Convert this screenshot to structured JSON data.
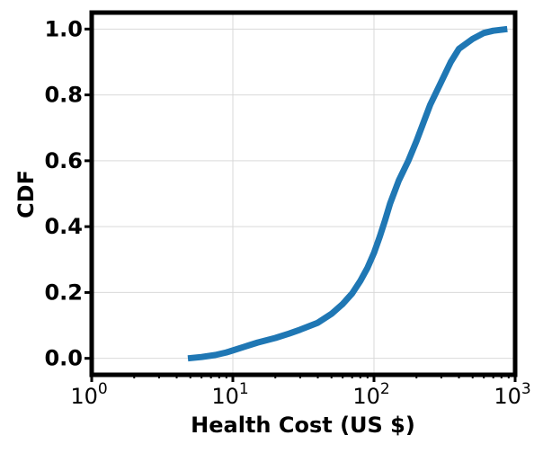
{
  "chart_data": {
    "type": "line",
    "title": "",
    "xlabel": "Health Cost (US $)",
    "ylabel": "CDF",
    "xscale": "log",
    "xlim": [
      1,
      1000
    ],
    "ylim": [
      -0.05,
      1.05
    ],
    "grid": true,
    "legend": "none",
    "x_ticks": [
      {
        "base": "10",
        "exp": "0",
        "value": 1
      },
      {
        "base": "10",
        "exp": "1",
        "value": 10
      },
      {
        "base": "10",
        "exp": "2",
        "value": 100
      },
      {
        "base": "10",
        "exp": "3",
        "value": 1000
      }
    ],
    "y_ticks": [
      {
        "label": "0.0",
        "value": 0.0
      },
      {
        "label": "0.2",
        "value": 0.2
      },
      {
        "label": "0.4",
        "value": 0.4
      },
      {
        "label": "0.6",
        "value": 0.6
      },
      {
        "label": "0.8",
        "value": 0.8
      },
      {
        "label": "1.0",
        "value": 1.0
      }
    ],
    "series": [
      {
        "color": "#1f77b4",
        "points": [
          [
            4.8,
            0.0
          ],
          [
            6,
            0.004
          ],
          [
            7.5,
            0.01
          ],
          [
            9,
            0.018
          ],
          [
            10,
            0.024
          ],
          [
            12,
            0.035
          ],
          [
            15,
            0.048
          ],
          [
            20,
            0.062
          ],
          [
            25,
            0.075
          ],
          [
            30,
            0.087
          ],
          [
            40,
            0.108
          ],
          [
            50,
            0.135
          ],
          [
            60,
            0.165
          ],
          [
            70,
            0.197
          ],
          [
            80,
            0.235
          ],
          [
            90,
            0.275
          ],
          [
            100,
            0.32
          ],
          [
            110,
            0.37
          ],
          [
            120,
            0.42
          ],
          [
            130,
            0.47
          ],
          [
            150,
            0.54
          ],
          [
            175,
            0.6
          ],
          [
            200,
            0.66
          ],
          [
            250,
            0.77
          ],
          [
            300,
            0.84
          ],
          [
            350,
            0.9
          ],
          [
            400,
            0.94
          ],
          [
            500,
            0.97
          ],
          [
            600,
            0.988
          ],
          [
            700,
            0.995
          ],
          [
            880,
            1.0
          ]
        ]
      }
    ]
  },
  "colors": {
    "series": "#1f77b4",
    "grid": "#d9d9d9",
    "frame": "#000000"
  }
}
